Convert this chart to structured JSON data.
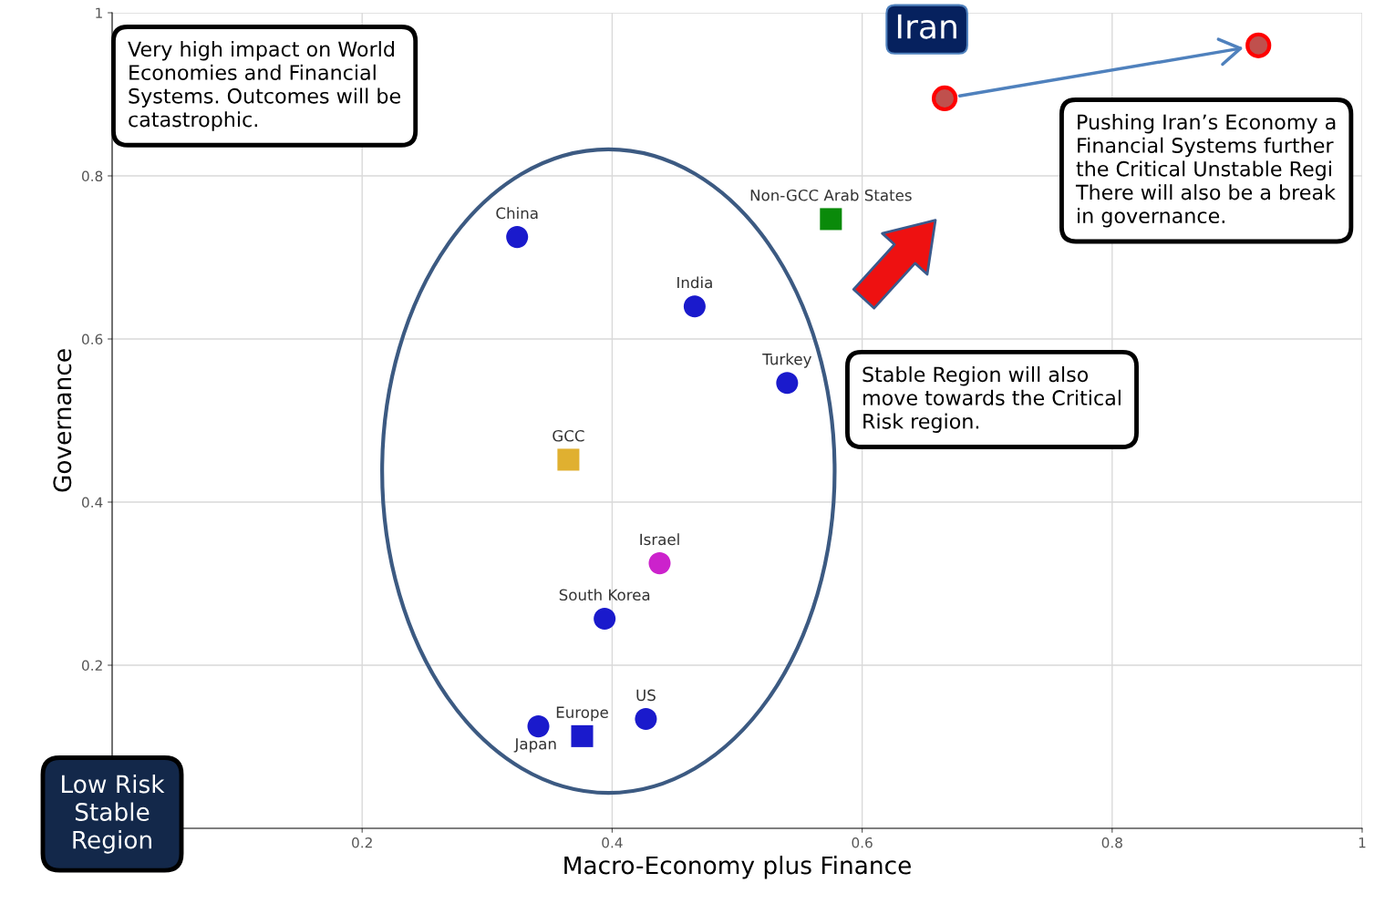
{
  "chart_data": {
    "type": "scatter",
    "xlabel": "Macro-Economy plus Finance",
    "ylabel": "Governance",
    "xlim": [
      0,
      1
    ],
    "ylim": [
      0,
      1
    ],
    "xticks": [
      0.2,
      0.4,
      0.6,
      0.8,
      1
    ],
    "yticks": [
      0.2,
      0.4,
      0.6,
      0.8,
      1
    ],
    "grid": true,
    "series": [
      {
        "name": "China",
        "color": "#1a1acc",
        "marker": "circle",
        "x": [
          0.324
        ],
        "values": [
          0.725
        ]
      },
      {
        "name": "India",
        "color": "#1a1acc",
        "marker": "circle",
        "x": [
          0.466
        ],
        "values": [
          0.64
        ]
      },
      {
        "name": "Turkey",
        "color": "#1a1acc",
        "marker": "circle",
        "x": [
          0.54
        ],
        "values": [
          0.546
        ]
      },
      {
        "name": "GCC",
        "color": "#e0b030",
        "marker": "square",
        "x": [
          0.365
        ],
        "values": [
          0.452
        ]
      },
      {
        "name": "Israel",
        "color": "#cc22cc",
        "marker": "circle",
        "x": [
          0.438
        ],
        "values": [
          0.325
        ]
      },
      {
        "name": "South Korea",
        "color": "#1a1acc",
        "marker": "circle",
        "x": [
          0.394
        ],
        "values": [
          0.257
        ]
      },
      {
        "name": "US",
        "color": "#1a1acc",
        "marker": "circle",
        "x": [
          0.427
        ],
        "values": [
          0.134
        ]
      },
      {
        "name": "Japan",
        "color": "#1a1acc",
        "marker": "circle",
        "x": [
          0.341
        ],
        "values": [
          0.125
        ]
      },
      {
        "name": "Europe",
        "color": "#1a1acc",
        "marker": "square",
        "x": [
          0.376
        ],
        "values": [
          0.113
        ]
      },
      {
        "name": "Non-GCC Arab States",
        "color": "#0a8a0a",
        "marker": "square",
        "x": [
          0.575
        ],
        "values": [
          0.747
        ]
      },
      {
        "name": "Iran",
        "color": "#c0504d",
        "marker": "circle",
        "x": [
          0.666,
          0.917
        ],
        "values": [
          0.895,
          0.96
        ]
      }
    ],
    "annotations": [
      "Very high impact on World\nEconomies and Financial\nSystems. Outcomes will be\ncatastrophic.",
      "Pushing Iran’s Economy a\nFinancial Systems further\nthe Critical Unstable Regi\nThere will also be a break\nin governance.",
      "Stable Region will also\nmove towards the Critical\nRisk region.",
      "Low Risk\nStable\nRegion"
    ]
  }
}
